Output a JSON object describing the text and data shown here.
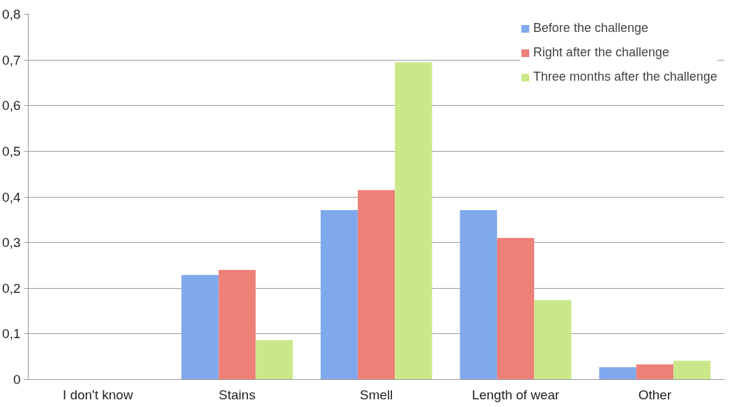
{
  "chart_data": {
    "type": "bar",
    "categories": [
      "I don't know",
      "Stains",
      "Smell",
      "Length of wear",
      "Other"
    ],
    "series": [
      {
        "name": "Before the challenge",
        "color": "#7fa9ec",
        "values": [
          0,
          0.229,
          0.371,
          0.371,
          0.027
        ]
      },
      {
        "name": "Right after the challenge",
        "color": "#ef8078",
        "values": [
          0,
          0.24,
          0.415,
          0.31,
          0.033
        ]
      },
      {
        "name": "Three months after the challenge",
        "color": "#cae88a",
        "values": [
          0,
          0.086,
          0.695,
          0.174,
          0.041
        ]
      }
    ],
    "ylim": [
      0,
      0.8
    ],
    "yticks": [
      {
        "value": 0,
        "label": "0"
      },
      {
        "value": 0.1,
        "label": "0,1"
      },
      {
        "value": 0.2,
        "label": "0,2"
      },
      {
        "value": 0.3,
        "label": "0,3"
      },
      {
        "value": 0.4,
        "label": "0,4"
      },
      {
        "value": 0.5,
        "label": "0,5"
      },
      {
        "value": 0.6,
        "label": "0,6"
      },
      {
        "value": 0.7,
        "label": "0,7"
      },
      {
        "value": 0.8,
        "label": "0,8"
      }
    ],
    "grid": "y",
    "legend": "top right"
  }
}
